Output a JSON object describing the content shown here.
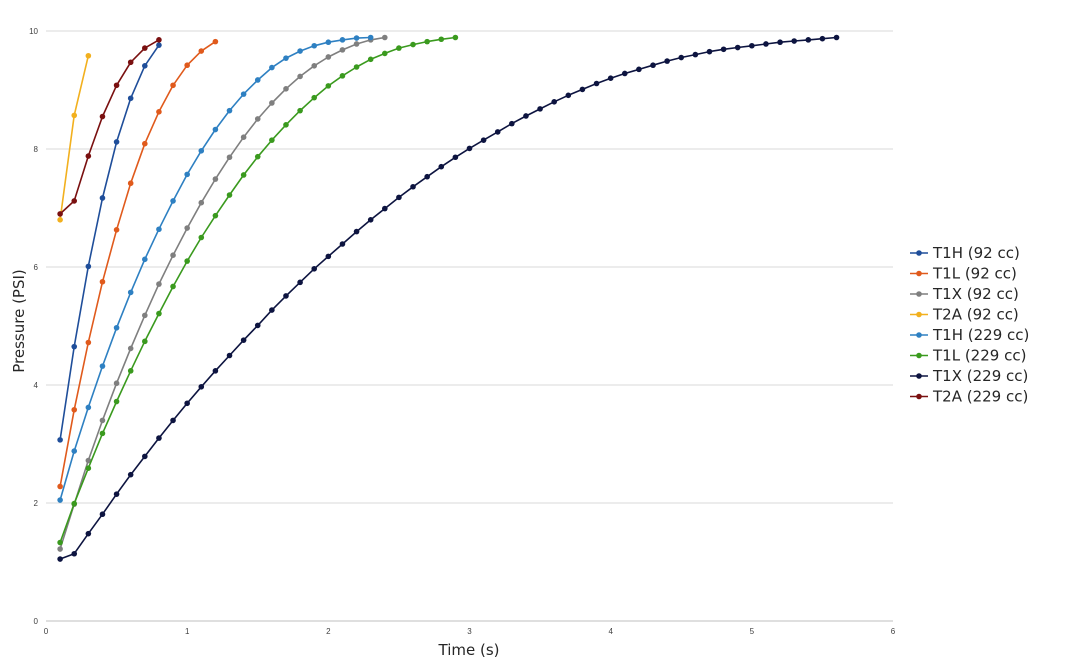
{
  "chart_data": {
    "type": "line",
    "title": "",
    "xlabel": "Time (s)",
    "ylabel": "Pressure (PSI)",
    "xlim": [
      0,
      6
    ],
    "ylim": [
      0,
      10
    ],
    "xticks": [
      "0",
      "1",
      "2",
      "3",
      "4",
      "5",
      "6"
    ],
    "yticks": [
      "0",
      "2",
      "4",
      "6",
      "8",
      "10"
    ],
    "grid": "horizontal",
    "legend_position": "right",
    "series": [
      {
        "name": "T1H (92 cc)",
        "color": "#1f4e9a",
        "x": [
          0.1,
          0.2,
          0.3,
          0.4,
          0.5,
          0.6,
          0.7,
          0.8
        ],
        "y": [
          3.07,
          4.65,
          6.01,
          7.17,
          8.12,
          8.86,
          9.41,
          9.76
        ]
      },
      {
        "name": "T1L (92 cc)",
        "color": "#e05a1c",
        "x": [
          0.1,
          0.2,
          0.3,
          0.4,
          0.5,
          0.6,
          0.7,
          0.8,
          0.9,
          1.0,
          1.1,
          1.2
        ],
        "y": [
          2.28,
          3.58,
          4.72,
          5.75,
          6.63,
          7.42,
          8.09,
          8.63,
          9.08,
          9.42,
          9.66,
          9.82
        ]
      },
      {
        "name": "T1X (92 cc)",
        "color": "#7f7f7f",
        "x": [
          0.1,
          0.2,
          0.3,
          0.4,
          0.5,
          0.6,
          0.7,
          0.8,
          0.9,
          1.0,
          1.1,
          1.2,
          1.3,
          1.4,
          1.5,
          1.6,
          1.7,
          1.8,
          1.9,
          2.0,
          2.1,
          2.2,
          2.3,
          2.4
        ],
        "y": [
          1.22,
          1.98,
          2.72,
          3.4,
          4.03,
          4.62,
          5.18,
          5.71,
          6.2,
          6.66,
          7.09,
          7.49,
          7.86,
          8.2,
          8.51,
          8.78,
          9.02,
          9.23,
          9.41,
          9.56,
          9.68,
          9.78,
          9.85,
          9.89
        ]
      },
      {
        "name": "T2A (92 cc)",
        "color": "#f2b01e",
        "x": [
          0.1,
          0.2,
          0.3
        ],
        "y": [
          6.8,
          8.57,
          9.58
        ]
      },
      {
        "name": "T1H (229 cc)",
        "color": "#2e80c2",
        "x": [
          0.1,
          0.2,
          0.3,
          0.4,
          0.5,
          0.6,
          0.7,
          0.8,
          0.9,
          1.0,
          1.1,
          1.2,
          1.3,
          1.4,
          1.5,
          1.6,
          1.7,
          1.8,
          1.9,
          2.0,
          2.1,
          2.2,
          2.3
        ],
        "y": [
          2.05,
          2.88,
          3.62,
          4.32,
          4.97,
          5.57,
          6.13,
          6.64,
          7.12,
          7.57,
          7.97,
          8.33,
          8.65,
          8.93,
          9.17,
          9.38,
          9.54,
          9.66,
          9.75,
          9.81,
          9.85,
          9.88,
          9.89
        ]
      },
      {
        "name": "T1L (229 cc)",
        "color": "#3a9a1e",
        "x": [
          0.1,
          0.2,
          0.3,
          0.4,
          0.5,
          0.6,
          0.7,
          0.8,
          0.9,
          1.0,
          1.1,
          1.2,
          1.3,
          1.4,
          1.5,
          1.6,
          1.7,
          1.8,
          1.9,
          2.0,
          2.1,
          2.2,
          2.3,
          2.4,
          2.5,
          2.6,
          2.7,
          2.8,
          2.9
        ],
        "y": [
          1.33,
          1.99,
          2.59,
          3.18,
          3.72,
          4.24,
          4.74,
          5.21,
          5.67,
          6.1,
          6.5,
          6.87,
          7.22,
          7.56,
          7.87,
          8.15,
          8.41,
          8.65,
          8.87,
          9.07,
          9.24,
          9.39,
          9.52,
          9.62,
          9.71,
          9.77,
          9.82,
          9.86,
          9.89
        ]
      },
      {
        "name": "T1X (229 cc)",
        "color": "#0d1440",
        "x": [
          0.1,
          0.2,
          0.3,
          0.4,
          0.5,
          0.6,
          0.7,
          0.8,
          0.9,
          1.0,
          1.1,
          1.2,
          1.3,
          1.4,
          1.5,
          1.6,
          1.7,
          1.8,
          1.9,
          2.0,
          2.1,
          2.2,
          2.3,
          2.4,
          2.5,
          2.6,
          2.7,
          2.8,
          2.9,
          3.0,
          3.1,
          3.2,
          3.3,
          3.4,
          3.5,
          3.6,
          3.7,
          3.8,
          3.9,
          4.0,
          4.1,
          4.2,
          4.3,
          4.4,
          4.5,
          4.6,
          4.7,
          4.8,
          4.9,
          5.0,
          5.1,
          5.2,
          5.3,
          5.4,
          5.5,
          5.6
        ],
        "y": [
          1.05,
          1.14,
          1.48,
          1.81,
          2.15,
          2.48,
          2.79,
          3.1,
          3.4,
          3.69,
          3.97,
          4.24,
          4.5,
          4.76,
          5.01,
          5.27,
          5.51,
          5.74,
          5.97,
          6.18,
          6.39,
          6.6,
          6.8,
          6.99,
          7.18,
          7.36,
          7.53,
          7.7,
          7.86,
          8.01,
          8.15,
          8.29,
          8.43,
          8.56,
          8.68,
          8.8,
          8.91,
          9.01,
          9.11,
          9.2,
          9.28,
          9.35,
          9.42,
          9.49,
          9.55,
          9.6,
          9.65,
          9.69,
          9.72,
          9.75,
          9.78,
          9.81,
          9.83,
          9.85,
          9.87,
          9.89
        ]
      },
      {
        "name": "T2A (229 cc)",
        "color": "#7a1010",
        "x": [
          0.1,
          0.2,
          0.3,
          0.4,
          0.5,
          0.6,
          0.7,
          0.8
        ],
        "y": [
          6.9,
          7.12,
          7.88,
          8.55,
          9.08,
          9.47,
          9.71,
          9.85
        ]
      }
    ]
  }
}
